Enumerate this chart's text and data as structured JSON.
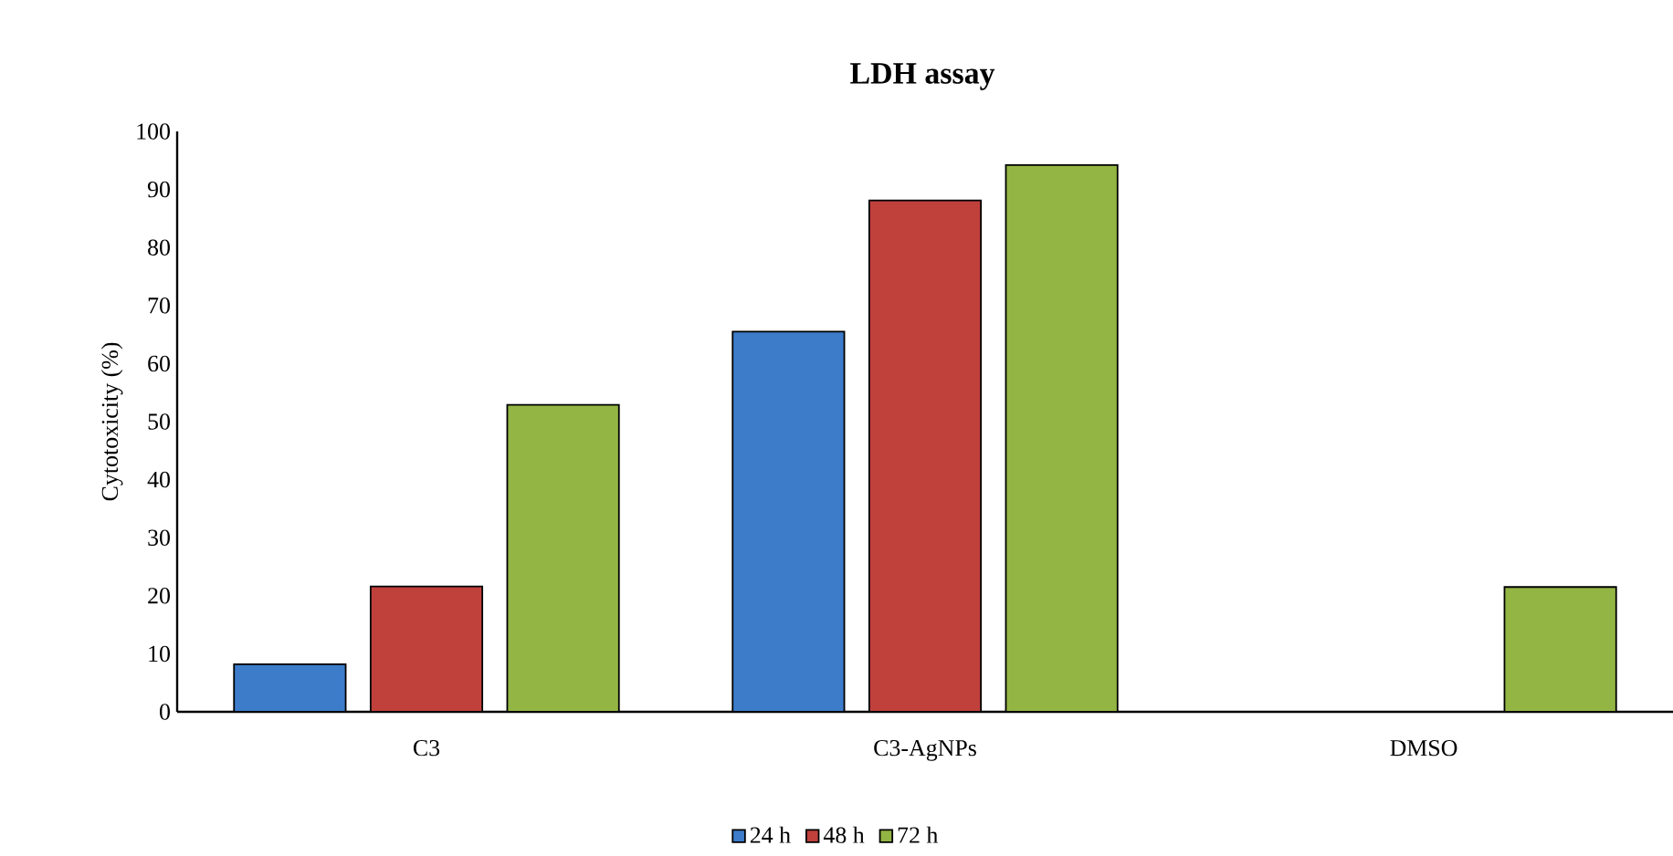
{
  "chart_data": {
    "type": "bar",
    "title": "**LDH assay**",
    "ylabel": "Cytotoxicity (%)",
    "categories": [
      "C3",
      "C3-AgNPs",
      "DMSO"
    ],
    "series": [
      {
        "name": "24 h",
        "color": "#3d7cc9",
        "values": [
          8.2,
          65.5,
          null
        ]
      },
      {
        "name": "48 h",
        "color": "#c0403c",
        "values": [
          21.6,
          88.1,
          null
        ]
      },
      {
        "name": "72 h",
        "color": "#93b544",
        "values": [
          52.9,
          94.2,
          21.5
        ]
      }
    ],
    "ylim": [
      0,
      100
    ],
    "yticks": [
      0,
      10,
      20,
      30,
      40,
      50,
      60,
      70,
      80,
      90,
      100
    ],
    "grid": false,
    "legend": "bottom"
  }
}
